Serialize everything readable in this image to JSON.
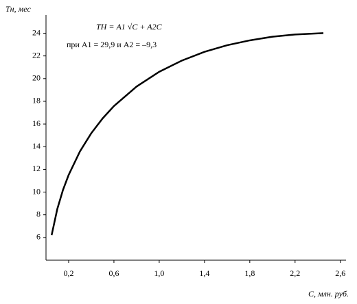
{
  "chart_data": {
    "type": "line",
    "y_label": "Tн, мес",
    "x_label": "C, млн. руб.",
    "annotations": [
      "TН = A1 √C + A2C",
      "при A1 = 29,9 и A2 = –9,3"
    ],
    "x": [
      0.05,
      0.1,
      0.15,
      0.2,
      0.3,
      0.4,
      0.5,
      0.6,
      0.8,
      1.0,
      1.2,
      1.4,
      1.6,
      1.8,
      2.0,
      2.2,
      2.45
    ],
    "series": [
      {
        "color": "#000000",
        "values": [
          6.22,
          8.52,
          10.19,
          11.51,
          13.59,
          15.19,
          16.49,
          17.58,
          19.3,
          20.6,
          21.59,
          22.36,
          22.94,
          23.37,
          23.69,
          23.89,
          24.01
        ]
      }
    ],
    "xlim": [
      0,
      2.65
    ],
    "ylim": [
      4,
      25.6
    ],
    "xticks": [
      {
        "value": 0.2,
        "label": "0,2"
      },
      {
        "value": 0.6,
        "label": "0,6"
      },
      {
        "value": 1.0,
        "label": "1,0"
      },
      {
        "value": 1.4,
        "label": "1,4"
      },
      {
        "value": 1.8,
        "label": "1,8"
      },
      {
        "value": 2.2,
        "label": "2,2"
      },
      {
        "value": 2.6,
        "label": "2,6"
      }
    ],
    "yticks": [
      6,
      8,
      10,
      12,
      14,
      16,
      18,
      20,
      22,
      24
    ],
    "grid": false
  }
}
